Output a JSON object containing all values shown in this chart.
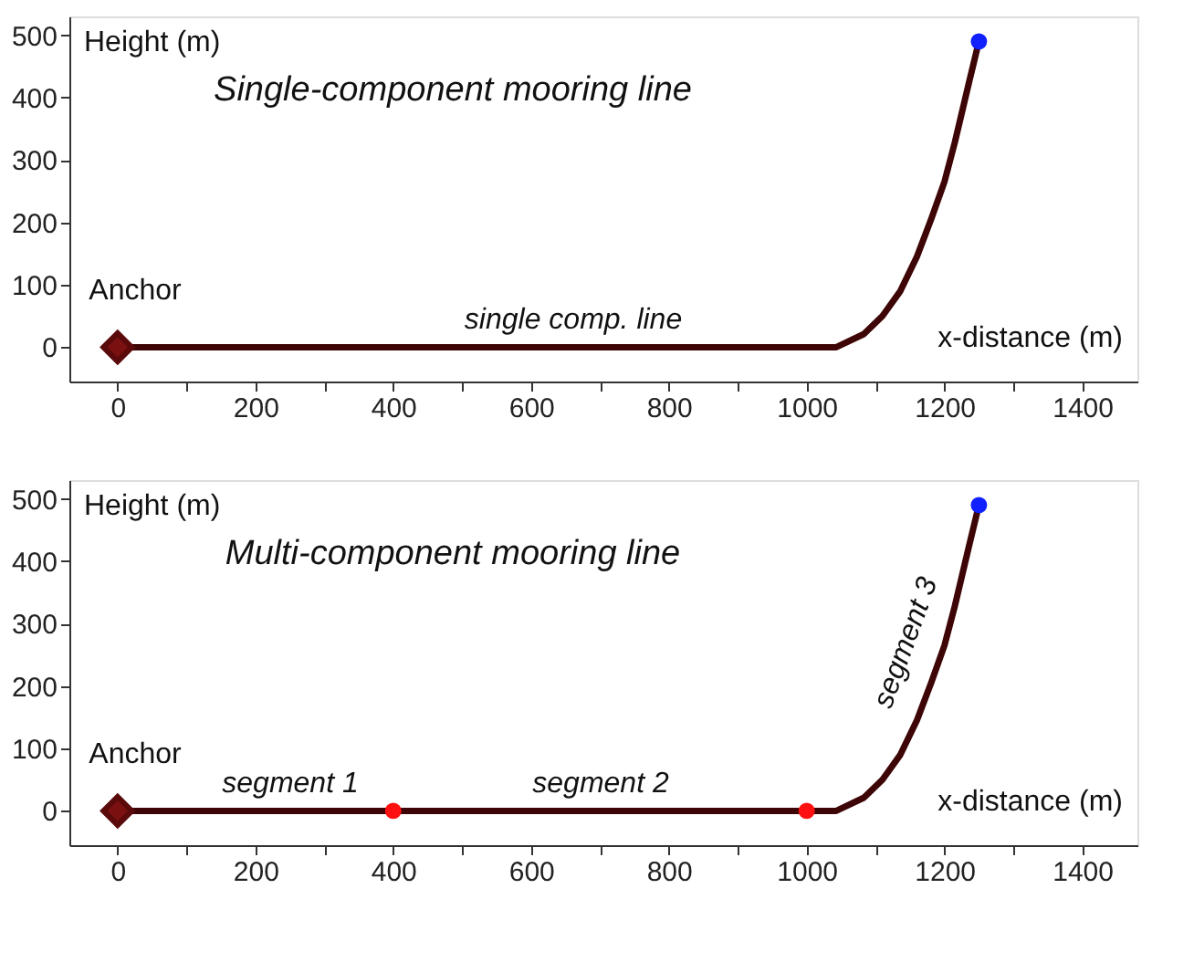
{
  "chart_data": [
    {
      "type": "line",
      "title": "Single-component mooring line",
      "xlabel": "x-distance (m)",
      "ylabel": "Height (m)",
      "xlim": [
        -70,
        1480
      ],
      "ylim": [
        -55,
        530
      ],
      "xticks": [
        0,
        {
          "value": 100,
          "label": null
        },
        200,
        {
          "value": 300,
          "label": null
        },
        400,
        {
          "value": 500,
          "label": null
        },
        600,
        {
          "value": 700,
          "label": null
        },
        800,
        {
          "value": 900,
          "label": null
        },
        1000,
        {
          "value": 1100,
          "label": null
        },
        1200,
        {
          "value": 1300,
          "label": null
        },
        1400
      ],
      "yticks": [
        0,
        100,
        200,
        300,
        400,
        500
      ],
      "grid": false,
      "series": [
        {
          "color": "#3d0505",
          "x": [
            0,
            1043,
            1083,
            1110,
            1136,
            1160,
            1181,
            1200,
            1215,
            1236,
            1250
          ],
          "values": [
            0,
            0,
            21,
            50,
            90,
            145,
            206,
            265,
            328,
            426,
            490
          ]
        },
        {
          "type": "scatter",
          "marker": "diamond",
          "color": "#5a0a0a",
          "x": [
            0
          ],
          "values": [
            0
          ]
        },
        {
          "type": "scatter",
          "marker": "circle",
          "color": "#1020ff",
          "x": [
            1250
          ],
          "values": [
            490
          ]
        }
      ],
      "annotations": [
        "Anchor",
        "single comp. line"
      ]
    },
    {
      "type": "line",
      "title": "Multi-component mooring line",
      "xlabel": "x-distance (m)",
      "ylabel": "Height (m)",
      "xlim": [
        -70,
        1480
      ],
      "ylim": [
        -55,
        530
      ],
      "xticks": [
        0,
        {
          "value": 100,
          "label": null
        },
        200,
        {
          "value": 300,
          "label": null
        },
        400,
        {
          "value": 500,
          "label": null
        },
        600,
        {
          "value": 700,
          "label": null
        },
        800,
        {
          "value": 900,
          "label": null
        },
        1000,
        {
          "value": 1100,
          "label": null
        },
        1200,
        {
          "value": 1300,
          "label": null
        },
        1400
      ],
      "yticks": [
        0,
        100,
        200,
        300,
        400,
        500
      ],
      "grid": false,
      "series": [
        {
          "color": "#3d0505",
          "x": [
            0,
            1043,
            1083,
            1110,
            1136,
            1160,
            1181,
            1200,
            1215,
            1236,
            1250
          ],
          "values": [
            0,
            0,
            21,
            50,
            90,
            145,
            206,
            265,
            328,
            426,
            490
          ]
        },
        {
          "type": "scatter",
          "marker": "diamond",
          "color": "#5a0a0a",
          "x": [
            0
          ],
          "values": [
            0
          ]
        },
        {
          "type": "scatter",
          "marker": "circle",
          "color": "#ff1010",
          "x": [
            400,
            1000
          ],
          "values": [
            0,
            0
          ]
        },
        {
          "type": "scatter",
          "marker": "circle",
          "color": "#1020ff",
          "x": [
            1250
          ],
          "values": [
            490
          ]
        }
      ],
      "annotations": [
        "Anchor",
        "segment 1",
        "segment 2",
        "segment 3"
      ]
    }
  ]
}
